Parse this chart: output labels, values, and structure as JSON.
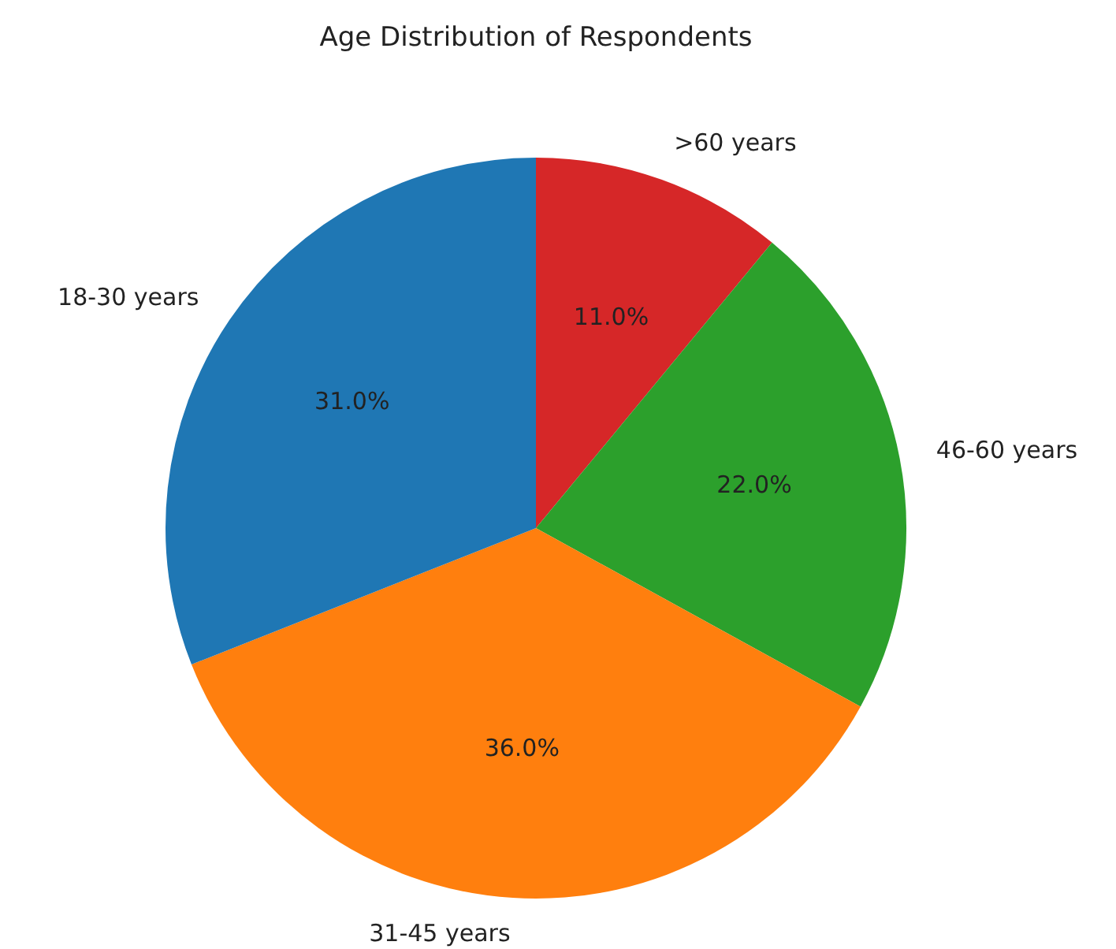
{
  "chart_data": {
    "type": "pie",
    "title": "Age Distribution of Respondents",
    "categories": [
      "18-30 years",
      "31-45 years",
      "46-60 years",
      ">60 years"
    ],
    "values": [
      31,
      36,
      22,
      11
    ],
    "colors": [
      "#1f77b4",
      "#ff7f0e",
      "#2ca02c",
      "#d62728"
    ],
    "value_labels": [
      "31.0%",
      "36.0%",
      "22.0%",
      "11.0%"
    ],
    "legend": false
  }
}
